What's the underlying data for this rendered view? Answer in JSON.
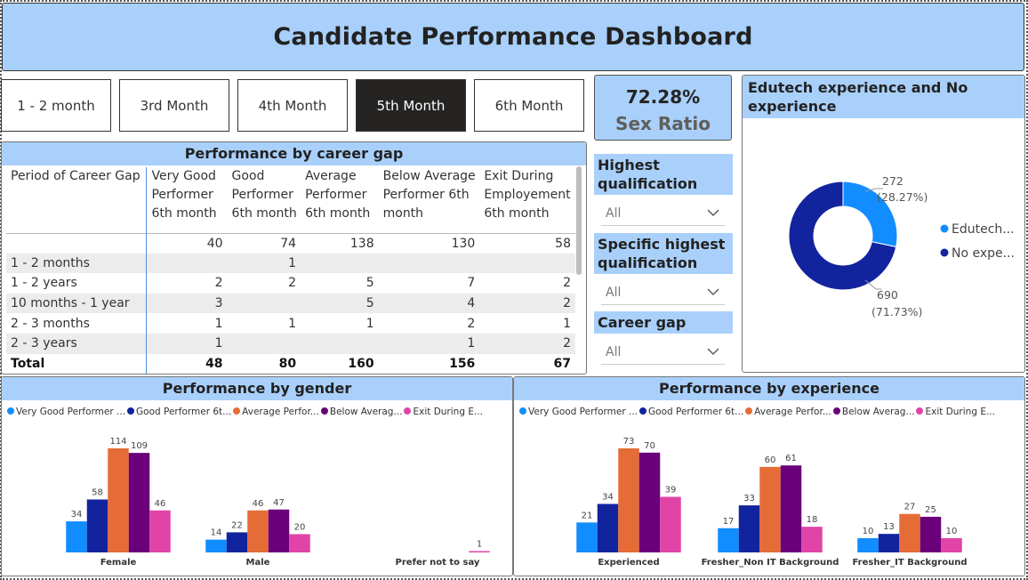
{
  "title": "Candidate Performance Dashboard",
  "month_buttons": [
    {
      "label": "1 - 2 month",
      "active": false
    },
    {
      "label": "3rd Month",
      "active": false
    },
    {
      "label": "4th Month",
      "active": false
    },
    {
      "label": "5th Month",
      "active": true
    },
    {
      "label": "6th Month",
      "active": false
    }
  ],
  "kpi": {
    "value": "72.28%",
    "label": "Sex Ratio"
  },
  "career_gap_table": {
    "title": "Performance by career gap",
    "headers": [
      "Period of Career Gap",
      "Very Good Performer 6th month",
      "Good Performer 6th month",
      "Average Performer 6th month",
      "Below Average Performer 6th month",
      "Exit During Employement 6th month"
    ],
    "header_lines": [
      [
        "Period of Career Gap"
      ],
      [
        "Very Good",
        "Performer",
        "6th month"
      ],
      [
        "Good",
        "Performer",
        "6th month"
      ],
      [
        "Average",
        "Performer",
        "6th month"
      ],
      [
        "Below Average",
        "Performer 6th",
        "month"
      ],
      [
        "Exit During",
        "Employement",
        "6th month"
      ]
    ],
    "subtotal_row": [
      "",
      "40",
      "74",
      "138",
      "130",
      "58"
    ],
    "rows": [
      [
        "1 - 2 months",
        "",
        "1",
        "",
        "",
        ""
      ],
      [
        "1 - 2 years",
        "2",
        "2",
        "5",
        "7",
        "2"
      ],
      [
        "10 months - 1 year",
        "3",
        "",
        "5",
        "4",
        "2"
      ],
      [
        "2 - 3 months",
        "1",
        "1",
        "1",
        "2",
        "1"
      ],
      [
        "2 - 3 years",
        "1",
        "",
        "",
        "1",
        "2"
      ]
    ],
    "total_row": [
      "Total",
      "48",
      "80",
      "160",
      "156",
      "67"
    ]
  },
  "slicers": [
    {
      "title": "Highest qualification",
      "title_lines": [
        "Highest",
        "qualification"
      ],
      "value": "All"
    },
    {
      "title": "Specific highest qualification",
      "title_lines": [
        "Specific highest",
        "qualification"
      ],
      "value": "All"
    },
    {
      "title": "Career gap",
      "title_lines": [
        "Career gap"
      ],
      "value": "All"
    }
  ],
  "donut": {
    "title": "Edutech experience and No experience",
    "title_lines": [
      "Edutech experience and No",
      "experience"
    ],
    "slices": [
      {
        "legend": "Edutech...",
        "value": 272,
        "value_text": "272",
        "pct_text": "(28.27%)",
        "color": "#118dff"
      },
      {
        "legend": "No expe...",
        "value": 690,
        "value_text": "690",
        "pct_text": "(71.73%)",
        "color": "#12239e"
      }
    ]
  },
  "legend_series": [
    {
      "label": "Very Good Performer ...",
      "color": "#118dff"
    },
    {
      "label": "Good Performer 6t...",
      "color": "#12239e"
    },
    {
      "label": "Average Perfor...",
      "color": "#e66c37"
    },
    {
      "label": "Below Averag...",
      "color": "#6b007b"
    },
    {
      "label": "Exit During E...",
      "color": "#e044a7"
    }
  ],
  "chart_data": [
    {
      "type": "bar",
      "title": "Performance by gender",
      "categories": [
        "Female",
        "Male",
        "Prefer not to say"
      ],
      "series": [
        {
          "name": "Very Good Performer ...",
          "values": [
            34,
            14,
            null
          ]
        },
        {
          "name": "Good Performer 6t...",
          "values": [
            58,
            22,
            null
          ]
        },
        {
          "name": "Average Perfor...",
          "values": [
            114,
            46,
            null
          ]
        },
        {
          "name": "Below Averag...",
          "values": [
            109,
            47,
            null
          ]
        },
        {
          "name": "Exit During E...",
          "values": [
            46,
            20,
            1
          ]
        }
      ],
      "ylim": [
        0,
        114
      ],
      "legend": "top-left"
    },
    {
      "type": "bar",
      "title": "Performance by experience",
      "categories": [
        "Experienced",
        "Fresher_Non IT Background",
        "Fresher_IT Background"
      ],
      "series": [
        {
          "name": "Very Good Performer ...",
          "values": [
            21,
            17,
            10
          ]
        },
        {
          "name": "Good Performer 6t...",
          "values": [
            34,
            33,
            13
          ]
        },
        {
          "name": "Average Perfor...",
          "values": [
            73,
            60,
            27
          ]
        },
        {
          "name": "Below Averag...",
          "values": [
            70,
            61,
            25
          ]
        },
        {
          "name": "Exit During E...",
          "values": [
            39,
            18,
            10
          ]
        }
      ],
      "ylim": [
        0,
        73
      ],
      "legend": "top-left"
    }
  ]
}
